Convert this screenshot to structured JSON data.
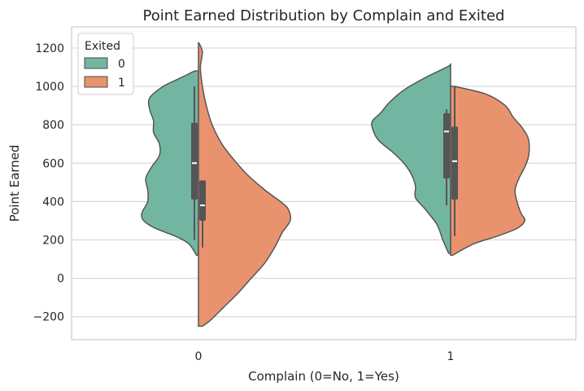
{
  "chart_data": {
    "type": "violin",
    "title": "Point Earned Distribution by Complain and Exited",
    "xlabel": "Complain (0=No, 1=Yes)",
    "ylabel": "Point Earned",
    "categories": [
      "0",
      "1"
    ],
    "ylim": [
      -320,
      1310
    ],
    "yticks": [
      -200,
      0,
      200,
      400,
      600,
      800,
      1000,
      1200
    ],
    "ytick_labels": [
      "−200",
      "0",
      "200",
      "400",
      "600",
      "800",
      "1000",
      "1200"
    ],
    "grid": true,
    "split": true,
    "legend": {
      "title": "Exited",
      "placement": "top-left",
      "entries": [
        "0",
        "1"
      ]
    },
    "series": [
      {
        "name": "0",
        "color": "#72b6a1",
        "violins": [
          {
            "category": "0",
            "min": 120,
            "max": 1080,
            "density": [
              [
                120,
                0.01
              ],
              [
                180,
                0.05
              ],
              [
                220,
                0.12
              ],
              [
                260,
                0.22
              ],
              [
                300,
                0.28
              ],
              [
                340,
                0.29
              ],
              [
                400,
                0.26
              ],
              [
                460,
                0.26
              ],
              [
                520,
                0.27
              ],
              [
                580,
                0.24
              ],
              [
                640,
                0.2
              ],
              [
                700,
                0.2
              ],
              [
                760,
                0.23
              ],
              [
                820,
                0.23
              ],
              [
                880,
                0.25
              ],
              [
                940,
                0.25
              ],
              [
                1000,
                0.18
              ],
              [
                1040,
                0.1
              ],
              [
                1080,
                0.02
              ]
            ],
            "box": {
              "q1": 410,
              "median": 600,
              "q3": 810,
              "whisker_low": 200,
              "whisker_high": 1000
            }
          },
          {
            "category": "1",
            "min": 130,
            "max": 1120,
            "density": [
              [
                130,
                0.01
              ],
              [
                200,
                0.04
              ],
              [
                280,
                0.07
              ],
              [
                360,
                0.13
              ],
              [
                420,
                0.18
              ],
              [
                480,
                0.18
              ],
              [
                540,
                0.2
              ],
              [
                600,
                0.24
              ],
              [
                660,
                0.3
              ],
              [
                720,
                0.37
              ],
              [
                780,
                0.4
              ],
              [
                820,
                0.4
              ],
              [
                860,
                0.36
              ],
              [
                920,
                0.31
              ],
              [
                980,
                0.24
              ],
              [
                1040,
                0.14
              ],
              [
                1100,
                0.02
              ],
              [
                1115,
                0.0
              ]
            ],
            "box": {
              "q1": 520,
              "median": 765,
              "q3": 860,
              "whisker_low": 380,
              "whisker_high": 880
            }
          }
        ]
      },
      {
        "name": "1",
        "color": "#e9936e",
        "violins": [
          {
            "category": "0",
            "min": -250,
            "max": 1230,
            "density": [
              [
                -250,
                0.02
              ],
              [
                -220,
                0.06
              ],
              [
                -150,
                0.13
              ],
              [
                -80,
                0.2
              ],
              [
                0,
                0.27
              ],
              [
                80,
                0.34
              ],
              [
                160,
                0.39
              ],
              [
                240,
                0.43
              ],
              [
                300,
                0.47
              ],
              [
                360,
                0.46
              ],
              [
                400,
                0.42
              ],
              [
                460,
                0.34
              ],
              [
                540,
                0.25
              ],
              [
                620,
                0.18
              ],
              [
                700,
                0.12
              ],
              [
                800,
                0.07
              ],
              [
                900,
                0.04
              ],
              [
                1000,
                0.02
              ],
              [
                1100,
                0.01
              ],
              [
                1180,
                0.02
              ],
              [
                1230,
                0.0
              ]
            ],
            "box": {
              "q1": 300,
              "median": 380,
              "q3": 510,
              "whisker_low": 160,
              "whisker_high": 510
            }
          },
          {
            "category": "1",
            "min": 120,
            "max": 1000,
            "density": [
              [
                120,
                0.01
              ],
              [
                180,
                0.12
              ],
              [
                220,
                0.24
              ],
              [
                260,
                0.34
              ],
              [
                300,
                0.38
              ],
              [
                340,
                0.36
              ],
              [
                400,
                0.34
              ],
              [
                460,
                0.33
              ],
              [
                520,
                0.35
              ],
              [
                580,
                0.38
              ],
              [
                640,
                0.4
              ],
              [
                720,
                0.4
              ],
              [
                780,
                0.37
              ],
              [
                840,
                0.32
              ],
              [
                900,
                0.28
              ],
              [
                960,
                0.18
              ],
              [
                1000,
                0.02
              ]
            ],
            "box": {
              "q1": 410,
              "median": 610,
              "q3": 790,
              "whisker_low": 220,
              "whisker_high": 1000
            }
          }
        ]
      }
    ]
  }
}
